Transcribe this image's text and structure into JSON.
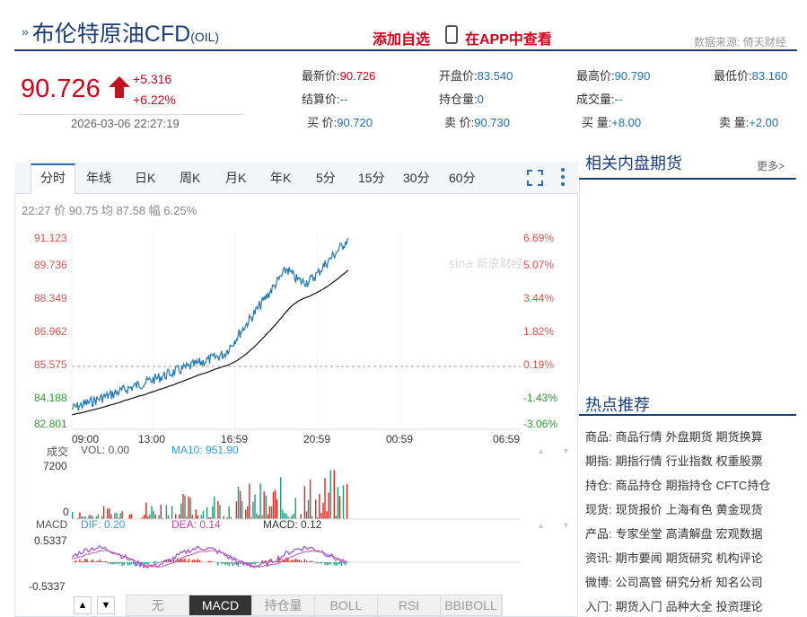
{
  "header": {
    "title": "布伦特原油CFD",
    "code": "(OIL)",
    "add_watch": "添加自选",
    "view_app": "在APP中查看",
    "data_source": "数据来源: 倚天财经"
  },
  "quote": {
    "price": "90.726",
    "change": "+5.316",
    "change_pct": "+6.22%",
    "time": "2026-03-06 22:27:19",
    "fields": {
      "latest_label": "最新价:",
      "latest": "90.726",
      "open_label": "开盘价:",
      "open": "83.540",
      "high_label": "最高价:",
      "high": "90.790",
      "low_label": "最低价:",
      "low": "83.160",
      "settle_label": "结算价:",
      "settle": "--",
      "oi_label": "持仓量:",
      "oi": "0",
      "volume_label": "成交量:",
      "volume": "--",
      "bid_label": "买  价:",
      "bid": "90.720",
      "ask_label": "卖  价:",
      "ask": "90.730",
      "bidvol_label": "买  量:",
      "bidvol": "+8.00",
      "askvol_label": "卖  量:",
      "askvol": "+2.00"
    }
  },
  "chart": {
    "tabs": [
      "分时",
      "年线",
      "日K",
      "周K",
      "月K",
      "年K",
      "5分",
      "15分",
      "30分",
      "60分"
    ],
    "stat_line": "22:27 价 90.75 均 87.58 幅 6.25%",
    "y_left": [
      "91.123",
      "89.736",
      "88.349",
      "86.962",
      "85.575",
      "84.188",
      "82.801"
    ],
    "y_right": [
      "6.69%",
      "5.07%",
      "3.44%",
      "1.82%",
      "0.19%",
      "-1.43%",
      "-3.06%"
    ],
    "x_labels": [
      "09:00",
      "13:00",
      "16:59",
      "20:59",
      "00:59",
      "06:59"
    ],
    "vol_label": "成交",
    "vol_text": "VOL: 0.00",
    "ma10_text": "MA10: 951.90",
    "vol_max": "7200",
    "vol_zero": "0",
    "macd_label": "MACD",
    "dif_text": "DIF: 0.20",
    "dea_text": "DEA: 0.14",
    "macd_text": "MACD: 0.12",
    "macd_max": "0.5337",
    "macd_min": "-0.5337",
    "indicators": [
      "无",
      "MACD",
      "持仓量",
      "BOLL",
      "RSI",
      "BBIBOLL"
    ],
    "colors": {
      "price": "#1f77b4",
      "avg": "#111111",
      "up": "#e0241c",
      "down": "#1a9a7a",
      "dif": "#9b59d0",
      "dea": "#d04fb7"
    }
  },
  "right": {
    "related_title": "相关内盘期货",
    "related_more": "更多>",
    "hot_title": "热点推荐",
    "hot_rows": [
      {
        "cat": "商品:",
        "items": [
          "商品行情",
          "外盘期货",
          "期货换算"
        ]
      },
      {
        "cat": "期指:",
        "items": [
          "期指行情",
          "行业指数",
          "权重股票"
        ]
      },
      {
        "cat": "持仓:",
        "items": [
          "商品持仓",
          "期指持仓",
          "CFTC持仓"
        ]
      },
      {
        "cat": "现货:",
        "items": [
          "现货报价",
          "上海有色",
          "黄金现货"
        ]
      },
      {
        "cat": "产品:",
        "items": [
          "专家坐堂",
          "高清解盘",
          "宏观数据"
        ]
      },
      {
        "cat": "资讯:",
        "items": [
          "期市要闻",
          "期货研究",
          "机构评论"
        ]
      },
      {
        "cat": "微博:",
        "items": [
          "公司高管",
          "研究分析",
          "知名公司"
        ]
      },
      {
        "cat": "入门:",
        "items": [
          "期货入门",
          "品种大全",
          "投资理论"
        ]
      }
    ]
  }
}
